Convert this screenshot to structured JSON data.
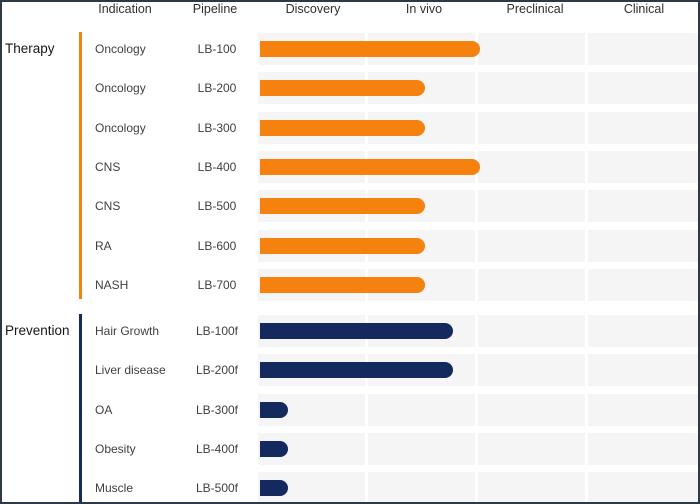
{
  "header": {
    "indication_label": "Indication",
    "pipeline_label": "Pipeline"
  },
  "colors": {
    "therapy_accent": "#f5810f",
    "prevention_accent": "#14295e",
    "row_track": "#f5f5f6",
    "frame_border": "#2e3947"
  },
  "chart_data": {
    "type": "bar",
    "orientation": "horizontal",
    "stage_axis": [
      "Discovery",
      "In vivo",
      "Preclinical",
      "Clinical"
    ],
    "stage_axis_range": [
      0,
      4
    ],
    "grid": "column-bands",
    "legend": "none",
    "groups": [
      {
        "name": "Therapy",
        "color": "#f5810f",
        "rows": [
          {
            "indication": "Oncology",
            "pipeline": "LB-100",
            "progress_stages": 2.0
          },
          {
            "indication": "Oncology",
            "pipeline": "LB-200",
            "progress_stages": 1.5
          },
          {
            "indication": "Oncology",
            "pipeline": "LB-300",
            "progress_stages": 1.5
          },
          {
            "indication": "CNS",
            "pipeline": "LB-400",
            "progress_stages": 2.0
          },
          {
            "indication": "CNS",
            "pipeline": "LB-500",
            "progress_stages": 1.5
          },
          {
            "indication": "RA",
            "pipeline": "LB-600",
            "progress_stages": 1.5
          },
          {
            "indication": "NASH",
            "pipeline": "LB-700",
            "progress_stages": 1.5
          }
        ]
      },
      {
        "name": "Prevention",
        "color": "#14295e",
        "rows": [
          {
            "indication": "Hair Growth",
            "pipeline": "LB-100f",
            "progress_stages": 1.75
          },
          {
            "indication": "Liver disease",
            "pipeline": "LB-200f",
            "progress_stages": 1.75
          },
          {
            "indication": "OA",
            "pipeline": "LB-300f",
            "progress_stages": 0.25
          },
          {
            "indication": "Obesity",
            "pipeline": "LB-400f",
            "progress_stages": 0.25
          },
          {
            "indication": "Muscle",
            "pipeline": "LB-500f",
            "progress_stages": 0.25
          }
        ]
      }
    ]
  }
}
